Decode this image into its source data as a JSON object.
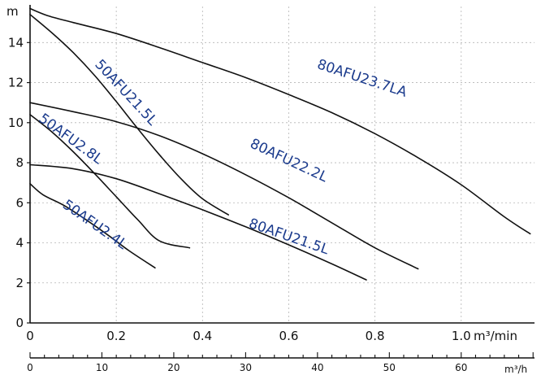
{
  "chart_data": {
    "type": "line",
    "title": "",
    "y_unit": "m",
    "x_unit": "m³/min",
    "x2_unit": "m³/h",
    "xlim": [
      0,
      1.17
    ],
    "ylim": [
      0,
      15.8
    ],
    "x_ticks": [
      0,
      0.2,
      0.4,
      0.6,
      0.8,
      1.0
    ],
    "x_tick_labels": [
      "0",
      "0.2",
      "0.4",
      "0.6",
      "0.8",
      "1.0"
    ],
    "y_ticks": [
      0,
      2,
      4,
      6,
      8,
      10,
      12,
      14
    ],
    "y_tick_labels": [
      "0",
      "2",
      "4",
      "6",
      "8",
      "10",
      "12",
      "14"
    ],
    "x2_ticks": [
      0,
      10,
      20,
      30,
      40,
      50,
      60
    ],
    "x2_tick_labels": [
      "0",
      "10",
      "20",
      "30",
      "40",
      "50",
      "60"
    ],
    "x2_per_x": 60,
    "grid": true,
    "series": [
      {
        "name": "80AFU23.7LA",
        "points": [
          [
            0,
            15.7
          ],
          [
            0.04,
            15.35
          ],
          [
            0.1,
            15.0
          ],
          [
            0.2,
            14.45
          ],
          [
            0.3,
            13.75
          ],
          [
            0.4,
            13.0
          ],
          [
            0.5,
            12.25
          ],
          [
            0.6,
            11.4
          ],
          [
            0.7,
            10.5
          ],
          [
            0.8,
            9.45
          ],
          [
            0.9,
            8.25
          ],
          [
            1.0,
            6.9
          ],
          [
            1.1,
            5.3
          ],
          [
            1.16,
            4.45
          ]
        ],
        "label_at": [
          0.77,
          12.2
        ],
        "label_rot": 18
      },
      {
        "name": "50AFU21.5L",
        "points": [
          [
            0,
            15.4
          ],
          [
            0.05,
            14.5
          ],
          [
            0.1,
            13.5
          ],
          [
            0.15,
            12.35
          ],
          [
            0.2,
            11.05
          ],
          [
            0.25,
            9.7
          ],
          [
            0.3,
            8.4
          ],
          [
            0.35,
            7.2
          ],
          [
            0.4,
            6.2
          ],
          [
            0.46,
            5.4
          ]
        ],
        "label_at": [
          0.222,
          11.5
        ],
        "label_rot": 47
      },
      {
        "name": "80AFU22.2L",
        "points": [
          [
            0,
            11.0
          ],
          [
            0.1,
            10.55
          ],
          [
            0.2,
            10.05
          ],
          [
            0.3,
            9.35
          ],
          [
            0.4,
            8.45
          ],
          [
            0.5,
            7.4
          ],
          [
            0.6,
            6.25
          ],
          [
            0.7,
            5.0
          ],
          [
            0.8,
            3.75
          ],
          [
            0.9,
            2.7
          ]
        ],
        "label_at": [
          0.6,
          8.1
        ],
        "label_rot": 25
      },
      {
        "name": "50AFU2.8L",
        "points": [
          [
            0,
            10.4
          ],
          [
            0.05,
            9.55
          ],
          [
            0.1,
            8.55
          ],
          [
            0.15,
            7.45
          ],
          [
            0.2,
            6.3
          ],
          [
            0.25,
            5.15
          ],
          [
            0.3,
            4.1
          ],
          [
            0.37,
            3.75
          ]
        ],
        "label_at": [
          0.094,
          9.18
        ],
        "label_rot": 36
      },
      {
        "name": "80AFU21.5L",
        "points": [
          [
            0,
            7.9
          ],
          [
            0.1,
            7.7
          ],
          [
            0.2,
            7.2
          ],
          [
            0.3,
            6.45
          ],
          [
            0.4,
            5.65
          ],
          [
            0.5,
            4.8
          ],
          [
            0.6,
            3.9
          ],
          [
            0.7,
            2.95
          ],
          [
            0.78,
            2.15
          ]
        ],
        "label_at": [
          0.6,
          4.3
        ],
        "label_rot": 19
      },
      {
        "name": "50AFU2.4L",
        "points": [
          [
            0,
            6.95
          ],
          [
            0.03,
            6.4
          ],
          [
            0.08,
            5.85
          ],
          [
            0.13,
            5.15
          ],
          [
            0.18,
            4.4
          ],
          [
            0.23,
            3.6
          ],
          [
            0.29,
            2.75
          ]
        ],
        "label_at": [
          0.15,
          4.9
        ],
        "label_rot": 35
      }
    ]
  }
}
